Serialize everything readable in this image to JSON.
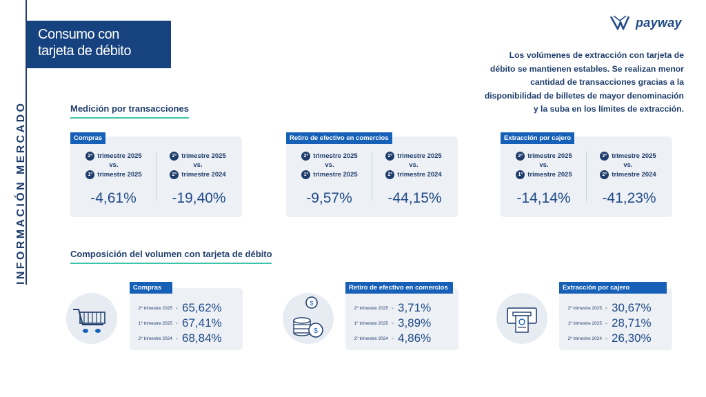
{
  "side_label": "INFORMACIÓN MERCADO",
  "title": {
    "line1": "Consumo con",
    "line2": "tarjeta de débito"
  },
  "brand": "payway",
  "intro": {
    "lines": [
      "Los volúmenes de extracción con tarjeta de",
      "débito se mantienen estables. Se realizan menor",
      "cantidad de transacciones gracias a la",
      "disponibilidad de billetes de mayor denominación",
      "y la suba en los límites de extracción."
    ]
  },
  "transactions": {
    "heading": "Medición por transacciones",
    "vs": "vs.",
    "cards": [
      {
        "tag": "Compras",
        "left": {
          "top_badge": "2º",
          "top": "trimestre 2025",
          "bottom_badge": "1º",
          "bottom": "trimestre 2025",
          "value": "-4,61%"
        },
        "right": {
          "top_badge": "2º",
          "top": "trimestre 2025",
          "bottom_badge": "2º",
          "bottom": "trimestre 2024",
          "value": "-19,40%"
        }
      },
      {
        "tag": "Retiro de efectivo en comercios",
        "left": {
          "top_badge": "2º",
          "top": "trimestre 2025",
          "bottom_badge": "1º",
          "bottom": "trimestre 2025",
          "value": "-9,57%"
        },
        "right": {
          "top_badge": "2º",
          "top": "trimestre 2025",
          "bottom_badge": "2º",
          "bottom": "trimestre 2024",
          "value": "-44,15%"
        }
      },
      {
        "tag": "Extracción por cajero",
        "left": {
          "top_badge": "2º",
          "top": "trimestre 2025",
          "bottom_badge": "1º",
          "bottom": "trimestre 2025",
          "value": "-14,14%"
        },
        "right": {
          "top_badge": "2º",
          "top": "trimestre 2025",
          "bottom_badge": "2º",
          "bottom": "trimestre 2024",
          "value": "-41,23%"
        }
      }
    ]
  },
  "composition": {
    "heading": "Composición del volumen con tarjeta de débito",
    "cards": [
      {
        "tag": "Compras",
        "icon": "shopping-cart-icon",
        "rows": [
          {
            "label": "2º trimestre 2025",
            "value": "65,62%"
          },
          {
            "label": "1º trimestre 2025",
            "value": "67,41%"
          },
          {
            "label": "2º trimestre 2024",
            "value": "68,84%"
          }
        ]
      },
      {
        "tag": "Retiro de efectivo en comercios",
        "icon": "coins-icon",
        "rows": [
          {
            "label": "2º trimestre 2025",
            "value": "3,71%"
          },
          {
            "label": "1º trimestre 2025",
            "value": "3,89%"
          },
          {
            "label": "2º trimestre 2024",
            "value": "4,86%"
          }
        ]
      },
      {
        "tag": "Extracción por cajero",
        "icon": "atm-icon",
        "rows": [
          {
            "label": "2º trimestre 2025",
            "value": "30,67%"
          },
          {
            "label": "1º trimestre 2025",
            "value": "28,71%"
          },
          {
            "label": "2º trimestre 2024",
            "value": "26,30%"
          }
        ]
      }
    ]
  },
  "colors": {
    "navy": "#1f3d6b",
    "title_bg": "#16427f",
    "tag_bg": "#1760b8",
    "accent": "#3ec4a6",
    "card_bg": "#edf0f5"
  }
}
